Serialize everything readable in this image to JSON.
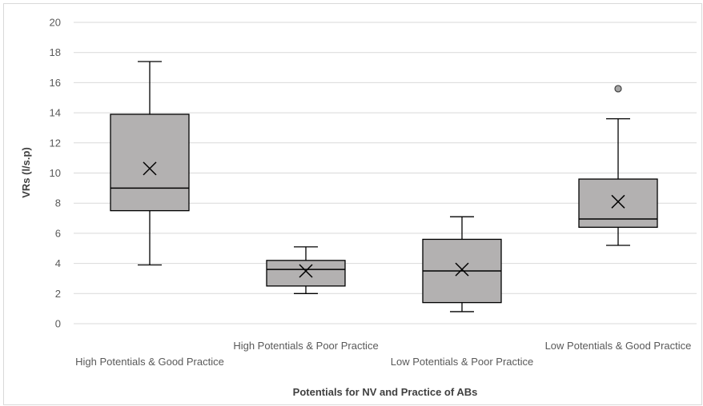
{
  "chart_data": {
    "type": "box",
    "title": "",
    "xlabel": "Potentials for NV and Practice of ABs",
    "ylabel": "VRs (l/s.p)",
    "ylim": [
      0,
      20
    ],
    "yticks": [
      0,
      2,
      4,
      6,
      8,
      10,
      12,
      14,
      16,
      18,
      20
    ],
    "grid": true,
    "categories": [
      "High Potentials & Good Practice",
      "High Potentials & Poor Practice",
      "Low Potentials & Poor Practice",
      "Low Potentials & Good Practice"
    ],
    "boxes": [
      {
        "min": 3.9,
        "q1": 7.5,
        "median": 9.0,
        "q3": 13.9,
        "max": 17.4,
        "mean": 10.3,
        "outliers": []
      },
      {
        "min": 2.0,
        "q1": 2.5,
        "median": 3.6,
        "q3": 4.2,
        "max": 5.1,
        "mean": 3.5,
        "outliers": []
      },
      {
        "min": 0.8,
        "q1": 1.4,
        "median": 3.5,
        "q3": 5.6,
        "max": 7.1,
        "mean": 3.6,
        "outliers": []
      },
      {
        "min": 5.2,
        "q1": 6.4,
        "median": 6.95,
        "q3": 9.6,
        "max": 13.6,
        "mean": 8.1,
        "outliers": [
          15.6
        ]
      }
    ],
    "colors": {
      "box_fill": "#b3b1b1",
      "stroke": "#000000",
      "grid": "#d9d9d9",
      "outlier_fill": "#a6a6a6"
    }
  }
}
